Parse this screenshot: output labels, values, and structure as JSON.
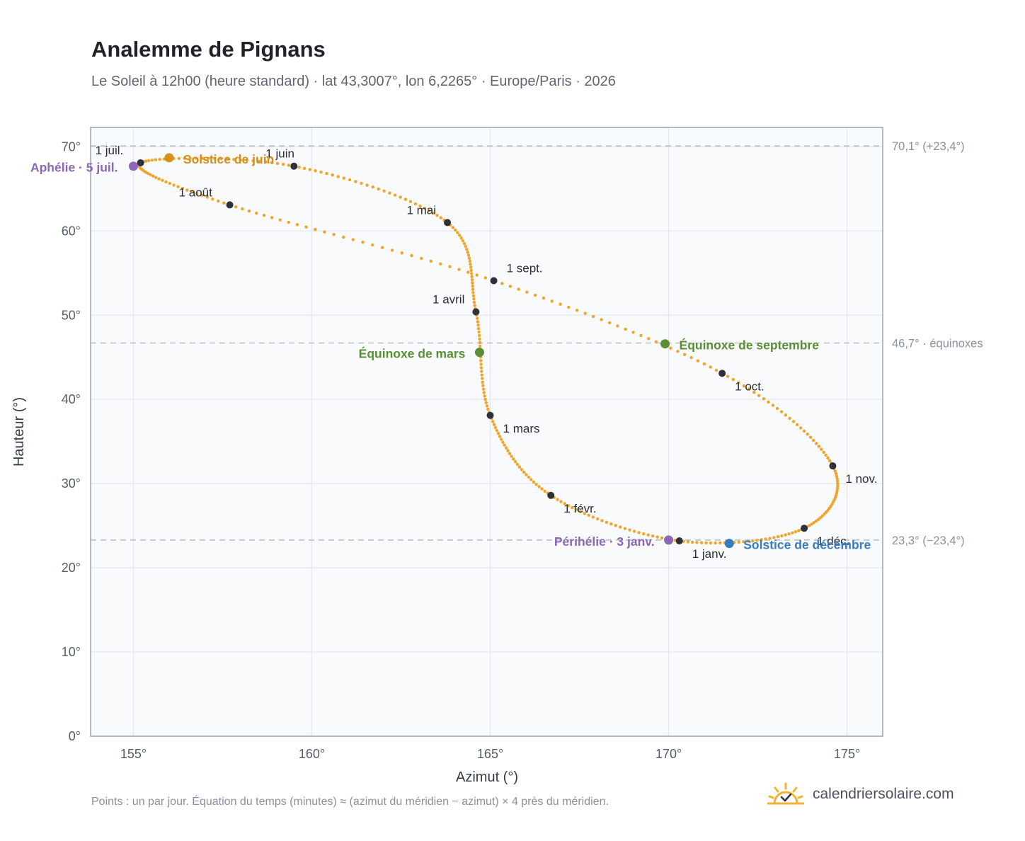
{
  "header": {
    "title": "Analemme de Pignans",
    "subtitle": "Le Soleil à 12h00 (heure standard) · lat 43,3007°, lon 6,2265° · Europe/Paris · 2026"
  },
  "footer": {
    "note": "Points : un par jour. Équation du temps (minutes) ≈ (azimut du méridien − azimut) × 4 près du méridien.",
    "brand": "calendriersolaire.com",
    "brand_icon": "sun-check-icon"
  },
  "colors": {
    "curve": "#f0a52a",
    "month_marker": "#2e3238",
    "aphelion": "#8b67b6",
    "perihelion": "#8b67b6",
    "equinox": "#5a8e34",
    "june_solstice": "#d4901a",
    "december_solstice": "#3a7cc0",
    "reference_line": "#b9c1cb",
    "plot_bg": "#f8fafc",
    "grid": "#e3e7ec",
    "frame": "#9aa3ae"
  },
  "chart_data": {
    "type": "scatter",
    "xlabel": "Azimut (°)",
    "ylabel": "Hauteur (°)",
    "xlim": [
      153.8,
      176.0
    ],
    "ylim": [
      0,
      72.3
    ],
    "grid": true,
    "x_ticks": [
      {
        "value": 155,
        "label": "155°"
      },
      {
        "value": 160,
        "label": "160°"
      },
      {
        "value": 165,
        "label": "165°"
      },
      {
        "value": 170,
        "label": "170°"
      },
      {
        "value": 175,
        "label": "175°"
      }
    ],
    "y_ticks": [
      {
        "value": 0,
        "label": "0°"
      },
      {
        "value": 10,
        "label": "10°"
      },
      {
        "value": 20,
        "label": "20°"
      },
      {
        "value": 30,
        "label": "30°"
      },
      {
        "value": 40,
        "label": "40°"
      },
      {
        "value": 50,
        "label": "50°"
      },
      {
        "value": 60,
        "label": "60°"
      },
      {
        "value": 70,
        "label": "70°"
      }
    ],
    "reference_lines": [
      {
        "y": 70.1,
        "label": "70,1° (+23,4°)"
      },
      {
        "y": 46.7,
        "label": "46,7° · équinoxes"
      },
      {
        "y": 23.3,
        "label": "23,3° (−23,4°)"
      }
    ],
    "month_markers": [
      {
        "label": "1 janv.",
        "x": 170.3,
        "y": 23.2
      },
      {
        "label": "1 févr.",
        "x": 166.7,
        "y": 28.6
      },
      {
        "label": "1 mars",
        "x": 165.0,
        "y": 38.1
      },
      {
        "label": "1 avril",
        "x": 164.6,
        "y": 50.4
      },
      {
        "label": "1 mai",
        "x": 163.8,
        "y": 61.0
      },
      {
        "label": "1 juin",
        "x": 159.5,
        "y": 67.7
      },
      {
        "label": "1 juil.",
        "x": 155.2,
        "y": 68.1
      },
      {
        "label": "1 août",
        "x": 157.7,
        "y": 63.1
      },
      {
        "label": "1 sept.",
        "x": 165.1,
        "y": 54.1
      },
      {
        "label": "1 oct.",
        "x": 171.5,
        "y": 43.1
      },
      {
        "label": "1 nov.",
        "x": 174.6,
        "y": 32.1
      },
      {
        "label": "1 déc.",
        "x": 173.8,
        "y": 24.7
      }
    ],
    "events": [
      {
        "label": "Aphélie · 5 juil.",
        "x": 155.0,
        "y": 67.7,
        "kind": "aphelion"
      },
      {
        "label": "Solstice de juin",
        "x": 156.0,
        "y": 68.7,
        "kind": "june_solstice"
      },
      {
        "label": "Équinoxe de mars",
        "x": 164.7,
        "y": 45.6,
        "kind": "equinox"
      },
      {
        "label": "Équinoxe de septembre",
        "x": 169.9,
        "y": 46.6,
        "kind": "equinox"
      },
      {
        "label": "Périhélie · 3 janv.",
        "x": 170.0,
        "y": 23.3,
        "kind": "perihelion"
      },
      {
        "label": "Solstice de décembre",
        "x": 171.7,
        "y": 22.9,
        "kind": "december_solstice"
      }
    ]
  }
}
